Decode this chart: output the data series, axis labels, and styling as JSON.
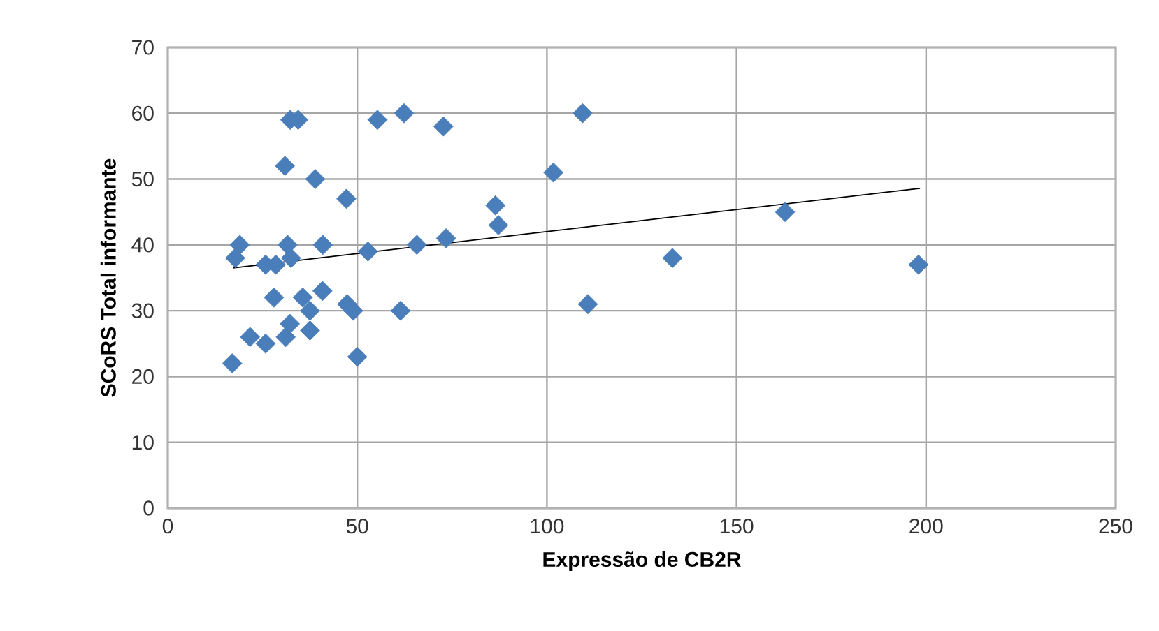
{
  "chart_data": {
    "type": "scatter",
    "xlabel": "Expressão de CB2R",
    "ylabel": "SCoRS Total informante",
    "xlim": [
      0,
      250
    ],
    "xticks": [
      0,
      50,
      100,
      150,
      200,
      250
    ],
    "ylim": [
      0,
      70
    ],
    "yticks": [
      0,
      10,
      20,
      30,
      40,
      50,
      60,
      70
    ],
    "grid": true,
    "marker": "diamond",
    "series": [
      {
        "color": "#4a7ebb",
        "x": [
          17,
          21.7,
          25.8,
          31.1,
          32.2,
          37.5,
          37.5,
          35.6,
          40.8,
          28,
          47.3,
          48.9,
          50,
          61.4,
          17.8,
          19,
          25.8,
          28.5,
          32.5,
          31.6,
          40.9,
          52.8,
          65.7,
          73.4,
          87.2,
          86.4,
          47.1,
          38.9,
          30.9,
          32.3,
          34.4,
          55.3,
          62.3,
          72.7,
          101.7,
          109.4,
          133.1,
          110.8,
          162.8,
          198
        ],
        "values": [
          22,
          26,
          25,
          26,
          28,
          27,
          30,
          32,
          33,
          32,
          31,
          30,
          23,
          30,
          38,
          40,
          37,
          37,
          38,
          40,
          40,
          39,
          40,
          41,
          43,
          46,
          47,
          50,
          52,
          59,
          59,
          59,
          60,
          58,
          51,
          60,
          38,
          31,
          45,
          37
        ]
      },
      {
        "type": "line",
        "color": "#000000",
        "marker": "none",
        "x": [
          17.2,
          198.4
        ],
        "values": [
          36.5,
          48.6
        ]
      }
    ]
  }
}
